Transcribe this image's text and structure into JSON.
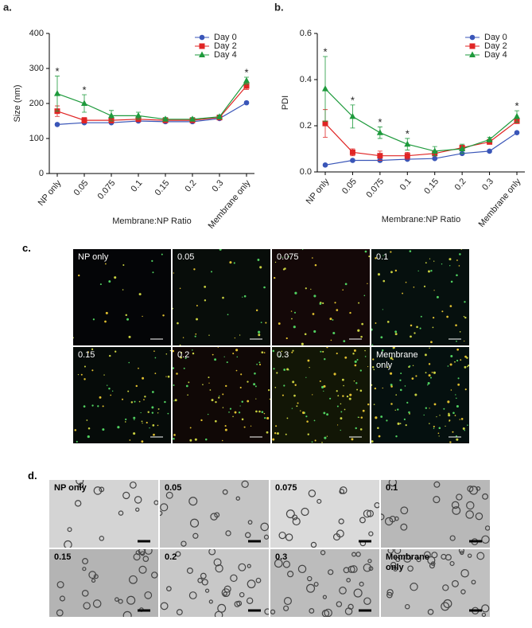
{
  "chart_data": [
    {
      "type": "line",
      "panel_label": "a.",
      "x_label": "Membrane:NP Ratio",
      "y_label": "Size (nm)",
      "categories": [
        "NP only",
        "0.05",
        "0.075",
        "0.1",
        "0.15",
        "0.2",
        "0.3",
        "Membrane only"
      ],
      "ylim": [
        0,
        400
      ],
      "yticks": [
        0,
        100,
        200,
        300,
        400
      ],
      "legend": "top-right",
      "significance": [
        "*",
        "*",
        null,
        null,
        null,
        null,
        null,
        "*"
      ],
      "series": [
        {
          "name": "Day 0",
          "color": "#3a56b8",
          "marker": "circle",
          "values": [
            140,
            145,
            145,
            150,
            148,
            148,
            157,
            202
          ],
          "errors": [
            3,
            3,
            3,
            3,
            3,
            3,
            3,
            3
          ]
        },
        {
          "name": "Day 2",
          "color": "#e02525",
          "marker": "square",
          "values": [
            178,
            152,
            152,
            155,
            152,
            152,
            160,
            250
          ],
          "errors": [
            15,
            8,
            8,
            5,
            3,
            3,
            3,
            10
          ]
        },
        {
          "name": "Day 4",
          "color": "#1e9a3c",
          "marker": "triangle",
          "values": [
            228,
            200,
            165,
            165,
            155,
            155,
            162,
            265
          ],
          "errors": [
            50,
            25,
            15,
            10,
            5,
            5,
            5,
            10
          ]
        }
      ]
    },
    {
      "type": "line",
      "panel_label": "b.",
      "x_label": "Membrane:NP Ratio",
      "y_label": "PDI",
      "categories": [
        "NP only",
        "0.05",
        "0.075",
        "0.1",
        "0.15",
        "0.2",
        "0.3",
        "Membrane only"
      ],
      "ylim": [
        0,
        0.6
      ],
      "yticks": [
        {
          "value": 0,
          "label": "0.0"
        },
        0.2,
        0.4,
        0.6
      ],
      "legend": "top-right",
      "significance": [
        "*",
        "*",
        "*",
        "*",
        null,
        null,
        null,
        "*"
      ],
      "series": [
        {
          "name": "Day 0",
          "color": "#3a56b8",
          "marker": "circle",
          "values": [
            0.03,
            0.05,
            0.05,
            0.055,
            0.058,
            0.08,
            0.09,
            0.17
          ],
          "errors": [
            0.005,
            0.005,
            0.005,
            0.005,
            0.005,
            0.005,
            0.005,
            0.005
          ]
        },
        {
          "name": "Day 2",
          "color": "#e02525",
          "marker": "square",
          "values": [
            0.21,
            0.085,
            0.07,
            0.07,
            0.08,
            0.105,
            0.13,
            0.22
          ],
          "errors": [
            0.06,
            0.015,
            0.02,
            0.015,
            0.01,
            0.01,
            0.01,
            0.01
          ]
        },
        {
          "name": "Day 4",
          "color": "#1e9a3c",
          "marker": "triangle",
          "values": [
            0.36,
            0.24,
            0.17,
            0.12,
            0.09,
            0.1,
            0.14,
            0.24
          ],
          "errors": [
            0.14,
            0.05,
            0.025,
            0.025,
            0.02,
            0.02,
            0.01,
            0.025
          ]
        }
      ]
    }
  ],
  "panel_c": {
    "label": "c.",
    "images": [
      "NP only",
      "0.05",
      "0.075",
      "0.1",
      "0.15",
      "0.2",
      "0.3",
      "Membrane only"
    ]
  },
  "panel_d": {
    "label": "d.",
    "images": [
      "NP only",
      "0.05",
      "0.075",
      "0.1",
      "0.15",
      "0.2",
      "0.3",
      "Membrane only"
    ]
  }
}
